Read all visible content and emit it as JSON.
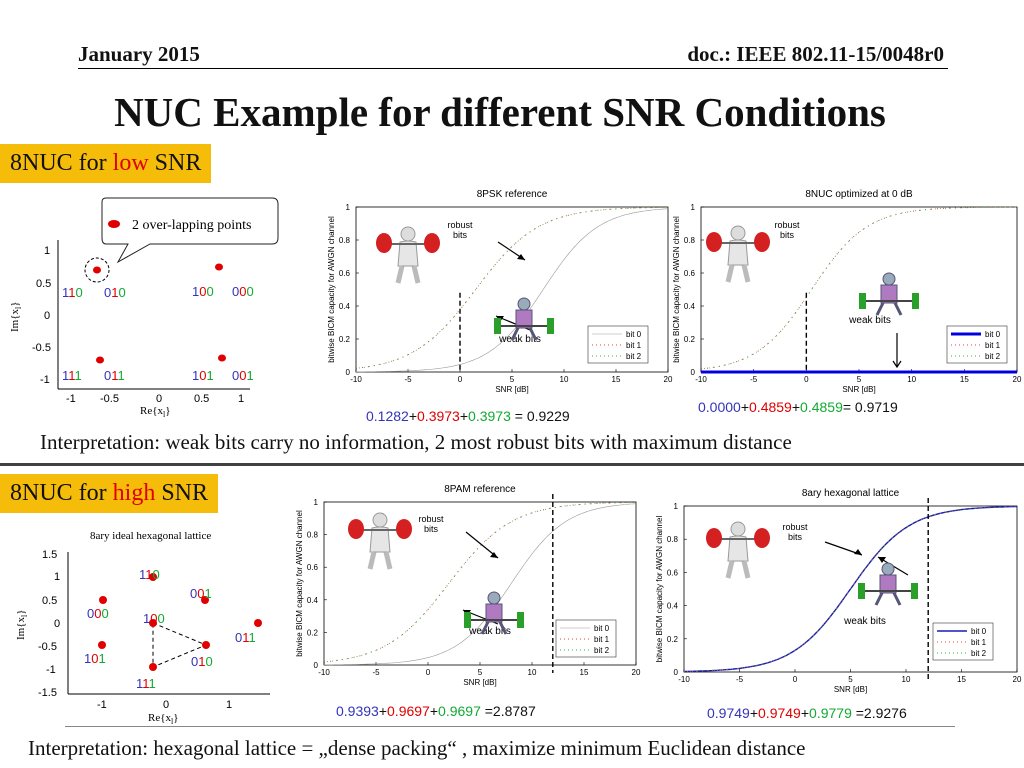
{
  "header": {
    "date": "January 2015",
    "doc": "doc.: IEEE 802.11-15/0048r0"
  },
  "title": "NUC Example for different SNR Conditions",
  "low": {
    "tag_prefix": "8NUC for ",
    "tag_highlight": "low",
    "tag_suffix": " SNR",
    "callout": "2 over-lapping points",
    "const_ylabel": "Im{x",
    "const_xlabel": "Re{x",
    "const_sub": "l",
    "labels": [
      {
        "text": "110",
        "a": "1",
        "b": "1",
        "c": "0"
      },
      {
        "text": "010",
        "a": "0",
        "b": "1",
        "c": "0"
      },
      {
        "text": "100",
        "a": "1",
        "b": "0",
        "c": "0"
      },
      {
        "text": "000",
        "a": "0",
        "b": "0",
        "c": "0"
      },
      {
        "text": "111",
        "a": "1",
        "b": "1",
        "c": "1"
      },
      {
        "text": "011",
        "a": "0",
        "b": "1",
        "c": "1"
      },
      {
        "text": "101",
        "a": "1",
        "b": "0",
        "c": "1"
      },
      {
        "text": "001",
        "a": "0",
        "b": "0",
        "c": "1"
      }
    ],
    "interpretation": "Interpretation: weak bits carry no information, 2 most robust bits with maximum distance",
    "formula1": {
      "a": "0.1282",
      "p1": "+",
      "b": "0.3973",
      "p2": "+",
      "c": "0.3973",
      "eq": " = 0.9229"
    },
    "formula2": {
      "a": "0.0000",
      "p1": "+",
      "b": "0.4859",
      "p2": "+",
      "c": "0.4859",
      "eq": "= 0.9719"
    }
  },
  "high": {
    "tag_prefix": "8NUC for ",
    "tag_highlight": "high",
    "tag_suffix": " SNR",
    "const_title": "8ary ideal hexagonal lattice",
    "const_ylabel": "Im{x",
    "const_xlabel": "Re{x",
    "const_sub": "l",
    "labels": [
      {
        "text": "110",
        "a": "1",
        "b": "1",
        "c": "0"
      },
      {
        "text": "001",
        "a": "0",
        "b": "0",
        "c": "1"
      },
      {
        "text": "000",
        "a": "0",
        "b": "0",
        "c": "0"
      },
      {
        "text": "100",
        "a": "1",
        "b": "0",
        "c": "0"
      },
      {
        "text": "011",
        "a": "0",
        "b": "1",
        "c": "1"
      },
      {
        "text": "101",
        "a": "1",
        "b": "0",
        "c": "1"
      },
      {
        "text": "010",
        "a": "0",
        "b": "1",
        "c": "0"
      },
      {
        "text": "111",
        "a": "1",
        "b": "1",
        "c": "1"
      }
    ],
    "interpretation": "Interpretation: hexagonal lattice = „dense packing“ , maximize minimum Euclidean distance",
    "formula1": {
      "a": "0.9393",
      "p1": "+",
      "b": "0.9697",
      "p2": "+",
      "c": "0.9697",
      "eq": " =2.8787"
    },
    "formula2": {
      "a": "0.9749",
      "p1": "+",
      "b": "0.9749",
      "p2": "+",
      "c": "0.9779",
      "eq": " =2.9276"
    }
  },
  "annotations": {
    "robust": "robust",
    "bits": "bits",
    "weak": "weak bits"
  },
  "colors": {
    "tag_bg": "#f5bc0a",
    "highlight": "#e00000",
    "bit_blue": "#3333bb",
    "bit_red": "#e00000",
    "bit_green": "#11aa33",
    "point": "#e00000"
  },
  "chart_data": [
    {
      "type": "line",
      "title": "8PSK reference",
      "xlabel": "SNR [dB]",
      "ylabel": "bitwise BICM capacity for AWGN channel",
      "xlim": [
        -10,
        20
      ],
      "ylim": [
        0,
        1
      ],
      "xticks": [
        "-10",
        "-5",
        "0",
        "5",
        "10",
        "15",
        "20"
      ],
      "yticks": [
        "0",
        "0.2",
        "0.4",
        "0.6",
        "0.8",
        "1"
      ],
      "legend": [
        "bit 0",
        "bit 1",
        "bit 2"
      ],
      "marker_snr": 0,
      "series": [
        {
          "name": "bit 0",
          "mid": 8,
          "slope": 0.38,
          "style": "thin"
        },
        {
          "name": "bit 1",
          "mid": 1.5,
          "slope": 0.33,
          "style": "dotred"
        },
        {
          "name": "bit 2",
          "mid": 1.5,
          "slope": 0.33,
          "style": "dotgreen"
        }
      ]
    },
    {
      "type": "line",
      "title": "8NUC optimized at 0 dB",
      "xlabel": "SNR [dB]",
      "ylabel": "bitwise BICM capacity for AWGN channel",
      "xlim": [
        -10,
        20
      ],
      "ylim": [
        0,
        1
      ],
      "xticks": [
        "-10",
        "-5",
        "0",
        "5",
        "10",
        "15",
        "20"
      ],
      "yticks": [
        "0",
        "0.2",
        "0.4",
        "0.6",
        "0.8",
        "1"
      ],
      "legend": [
        "bit 0",
        "bit 1",
        "bit 2"
      ],
      "marker_snr": 0,
      "series": [
        {
          "name": "bit 0",
          "mid": null,
          "slope": 0,
          "style": "flatblue"
        },
        {
          "name": "bit 1",
          "mid": 0.5,
          "slope": 0.38,
          "style": "dotred"
        },
        {
          "name": "bit 2",
          "mid": 0.5,
          "slope": 0.38,
          "style": "dotgreen"
        }
      ]
    },
    {
      "type": "line",
      "title": "8PAM reference",
      "xlabel": "SNR [dB]",
      "ylabel": "bitwise BICM capacity for AWGN channel",
      "xlim": [
        -10,
        20
      ],
      "ylim": [
        0,
        1
      ],
      "xticks": [
        "-10",
        "-5",
        "0",
        "5",
        "10",
        "15",
        "20"
      ],
      "yticks": [
        "0",
        "0.2",
        "0.4",
        "0.6",
        "0.8",
        "1"
      ],
      "legend": [
        "bit 0",
        "bit 1",
        "bit 2"
      ],
      "marker_snr": 12,
      "series": [
        {
          "name": "bit 0",
          "mid": 8,
          "slope": 0.38,
          "style": "thin"
        },
        {
          "name": "bit 1",
          "mid": 2,
          "slope": 0.33,
          "style": "dotred"
        },
        {
          "name": "bit 2",
          "mid": 2,
          "slope": 0.33,
          "style": "dotgreen"
        }
      ]
    },
    {
      "type": "line",
      "title": "8ary hexagonal lattice",
      "xlabel": "SNR [dB]",
      "ylabel": "bitwise BICM capacity for AWGN channel",
      "xlim": [
        -10,
        20
      ],
      "ylim": [
        0,
        1
      ],
      "xticks": [
        "-10",
        "-5",
        "0",
        "5",
        "10",
        "15",
        "20"
      ],
      "yticks": [
        "0",
        "0.2",
        "0.4",
        "0.6",
        "0.8",
        "1"
      ],
      "legend": [
        "bit 0",
        "bit 1",
        "bit 2"
      ],
      "marker_snr": 12,
      "series": [
        {
          "name": "bit 0",
          "mid": 5,
          "slope": 0.38,
          "style": "solidblue"
        },
        {
          "name": "bit 1",
          "mid": 5,
          "slope": 0.38,
          "style": "dotred"
        },
        {
          "name": "bit 2",
          "mid": 5,
          "slope": 0.38,
          "style": "dotgreen"
        }
      ]
    }
  ]
}
